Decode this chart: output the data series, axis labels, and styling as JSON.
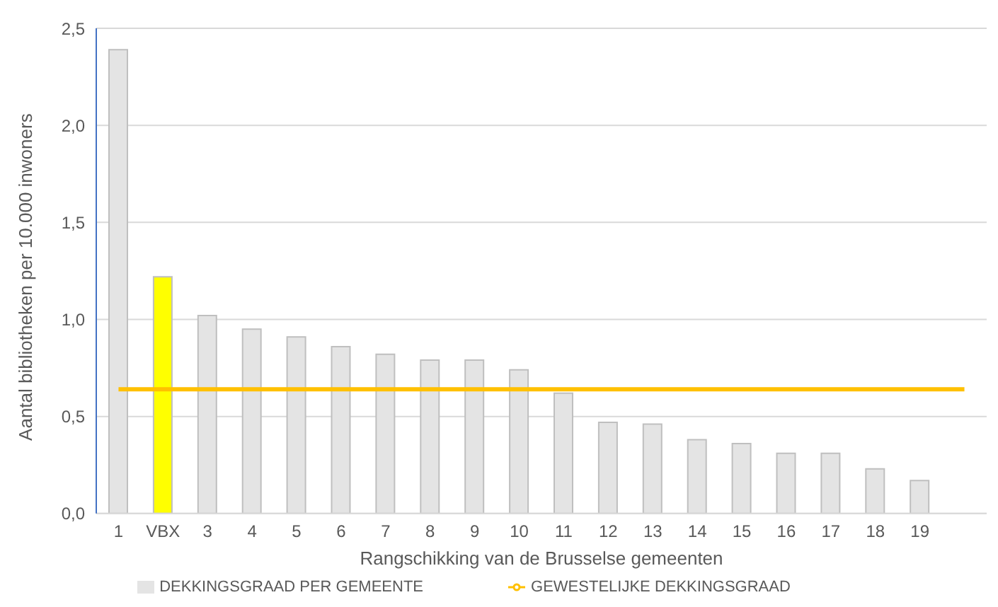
{
  "chart_data": {
    "type": "bar",
    "xlabel": "Rangschikking van de Brusselse gemeenten",
    "ylabel": "Aantal bibliotheken per 10.000 inwoners",
    "categories": [
      "1",
      "VBX",
      "3",
      "4",
      "5",
      "6",
      "7",
      "8",
      "9",
      "10",
      "11",
      "12",
      "13",
      "14",
      "15",
      "16",
      "17",
      "18",
      "19",
      null
    ],
    "series": [
      {
        "name": "DEKKINGSGRAAD PER GEMEENTE",
        "color": "#e4e4e4",
        "colors": [
          "#e4e4e4",
          "#ffff00",
          "#e4e4e4",
          "#e4e4e4",
          "#e4e4e4",
          "#e4e4e4",
          "#e4e4e4",
          "#e4e4e4",
          "#e4e4e4",
          "#e4e4e4",
          "#e4e4e4",
          "#e4e4e4",
          "#e4e4e4",
          "#e4e4e4",
          "#e4e4e4",
          "#e4e4e4",
          "#e4e4e4",
          "#e4e4e4",
          "#e4e4e4",
          "#e4e4e4"
        ],
        "values": [
          2.39,
          1.22,
          1.02,
          0.95,
          0.91,
          0.86,
          0.82,
          0.79,
          0.79,
          0.74,
          0.62,
          0.47,
          0.46,
          0.38,
          0.36,
          0.31,
          0.31,
          0.23,
          0.17,
          null
        ]
      },
      {
        "name": "GEWESTELIJKE DEKKINGSGRAAD",
        "type": "line",
        "color": "#ffc000",
        "values": [
          0.64,
          0.64,
          0.64,
          0.64,
          0.64,
          0.64,
          0.64,
          0.64,
          0.64,
          0.64,
          0.64,
          0.64,
          0.64,
          0.64,
          0.64,
          0.64,
          0.64,
          0.64,
          0.64,
          0.64
        ]
      }
    ],
    "ylim": [
      0,
      2.5
    ],
    "yticks": [
      {
        "value": 0,
        "label": "0,0"
      },
      {
        "value": 0.5,
        "label": "0,5"
      },
      {
        "value": 1,
        "label": "1,0"
      },
      {
        "value": 1.5,
        "label": "1,5"
      },
      {
        "value": 2,
        "label": "2,0"
      },
      {
        "value": 2.5,
        "label": "2,5"
      }
    ],
    "grid": "y",
    "legend": "bottom"
  }
}
